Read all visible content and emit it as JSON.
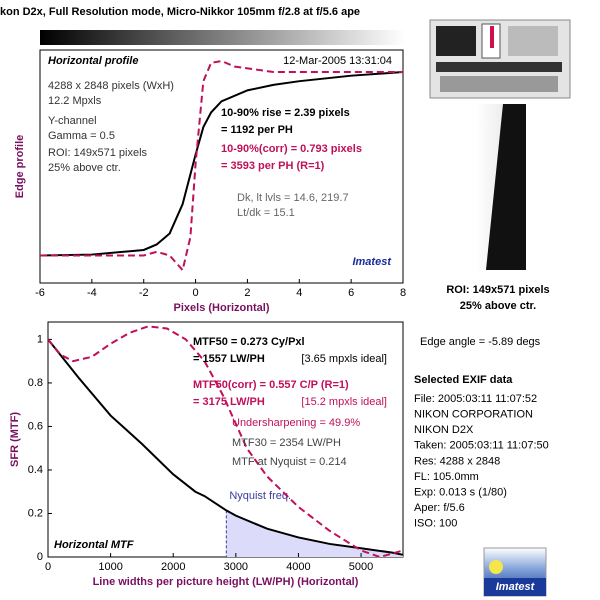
{
  "title": "kon D2x, Full Resolution mode, Micro-Nikkor 105mm f/2.8 at f/5.6 ape",
  "chart_data": [
    {
      "type": "line",
      "title": "Horizontal profile",
      "subtitle": "12-Mar-2005 13:31:04",
      "xlabel": "Pixels (Horizontal)",
      "ylabel": "Edge profile",
      "xlim": [
        -6,
        8
      ],
      "xticks": [
        -6,
        -4,
        -2,
        0,
        2,
        4,
        6,
        8
      ],
      "ylim": [
        -0.15,
        1.12
      ],
      "series": [
        {
          "color": "#000000",
          "dashed": false,
          "x": [
            -6,
            -4,
            -2,
            -1.5,
            -1,
            -0.5,
            0,
            0.3,
            0.6,
            1,
            2,
            3,
            4,
            6,
            8
          ],
          "values": [
            0,
            0.005,
            0.03,
            0.06,
            0.12,
            0.28,
            0.55,
            0.7,
            0.78,
            0.84,
            0.9,
            0.93,
            0.95,
            0.98,
            1.0
          ]
        },
        {
          "color": "#c0105a",
          "dashed": true,
          "x": [
            -6,
            -2,
            -1.5,
            -1,
            -0.5,
            -0.2,
            0,
            0.3,
            0.6,
            1,
            1.5,
            2,
            3,
            4,
            6,
            8
          ],
          "values": [
            0,
            0,
            0.02,
            0,
            -0.08,
            0.1,
            0.5,
            0.95,
            1.05,
            1.06,
            1.03,
            1.02,
            1.0,
            1.0,
            1.0,
            1.0
          ]
        }
      ],
      "annotations": [
        {
          "text": "4288 x 2848 pixels (WxH)",
          "color": "#333333"
        },
        {
          "text": "12.2 Mpxls",
          "color": "#333333"
        },
        {
          "text": "Y-channel",
          "color": "#333333"
        },
        {
          "text": "Gamma = 0.5",
          "color": "#333333"
        },
        {
          "text": "ROI: 149x571 pixels",
          "color": "#333333"
        },
        {
          "text": "25% above ctr.",
          "color": "#333333"
        },
        {
          "text": "10-90% rise = 2.39 pixels",
          "color": "#000000"
        },
        {
          "text": "= 1192 per PH",
          "color": "#000000"
        },
        {
          "text": "10-90%(corr) = 0.793 pixels",
          "color": "#c0105a"
        },
        {
          "text": "= 3593 per PH  (R=1)",
          "color": "#c0105a"
        },
        {
          "text": "Dk, lt lvls = 14.6, 219.7",
          "color": "#666666"
        },
        {
          "text": "Lt/dk = 15.1",
          "color": "#666666"
        },
        {
          "text": "Imatest",
          "color": "#1a2a9a"
        }
      ]
    },
    {
      "type": "line",
      "title": "Horizontal MTF",
      "xlabel": "Line widths per picture height (LW/PH) (Horizontal)",
      "ylabel": "SFR (MTF)",
      "xlim": [
        0,
        5670
      ],
      "xticks": [
        0,
        1000,
        2000,
        3000,
        4000,
        5000
      ],
      "ylim": [
        0,
        1.08
      ],
      "yticks": [
        0,
        0.2,
        0.4,
        0.6,
        0.8,
        1
      ],
      "nyquist": {
        "value": 2848,
        "label": "Nyquist freq.",
        "color": "#3a3aa0",
        "fill": "#dcdcfa"
      },
      "series": [
        {
          "color": "#000000",
          "dashed": false,
          "x": [
            0,
            500,
            1000,
            1500,
            2000,
            2354,
            2500,
            2848,
            3000,
            3500,
            4000,
            4500,
            5000,
            5500,
            5670
          ],
          "values": [
            1,
            0.82,
            0.65,
            0.52,
            0.38,
            0.3,
            0.28,
            0.214,
            0.19,
            0.13,
            0.09,
            0.06,
            0.04,
            0.02,
            0.01
          ]
        },
        {
          "color": "#c0105a",
          "dashed": true,
          "x": [
            0,
            200,
            400,
            700,
            1000,
            1300,
            1600,
            1900,
            2200,
            2500,
            2800,
            3175,
            3500,
            4000,
            4500,
            5000,
            5300,
            5670
          ],
          "values": [
            1,
            0.93,
            0.9,
            0.92,
            0.98,
            1.03,
            1.06,
            1.05,
            1.0,
            0.9,
            0.74,
            0.5,
            0.37,
            0.23,
            0.12,
            0.03,
            0,
            0.03
          ]
        }
      ],
      "annotations": [
        {
          "text": "MTF50 = 0.273 Cy/Pxl",
          "color": "#000000"
        },
        {
          "text": "= 1557 LW/PH",
          "color": "#000000"
        },
        {
          "text": "[3.65 mpxls ideal]",
          "color": "#000000"
        },
        {
          "text": "MTF50(corr) = 0.557 C/P  (R=1)",
          "color": "#c0105a"
        },
        {
          "text": "= 3175 LW/PH",
          "color": "#c0105a"
        },
        {
          "text": "[15.2 mpxls ideal]",
          "color": "#c0105a"
        },
        {
          "text": "Undersharpening = 49.9%",
          "color": "#c0105a"
        },
        {
          "text": "MTF30 = 2354 LW/PH",
          "color": "#444444"
        },
        {
          "text": "MTF at Nyquist = 0.214",
          "color": "#444444"
        }
      ]
    }
  ],
  "side": {
    "roi_caption": [
      "ROI: 149x571 pixels",
      "25% above ctr."
    ],
    "edge_angle": "Edge angle = -5.89 degs",
    "exif_title": "Selected EXIF data",
    "exif": [
      "File:  2005:03:11 11:07:52",
      "NIKON CORPORATION",
      "NIKON D2X",
      "Taken: 2005:03:11 11:07:50",
      "Res:    4288 x 2848",
      "FL:   105.0mm",
      "Exp:   0.013 s  (1/80)",
      "Aper:   f/5.6",
      "ISO:    100"
    ],
    "logo": "Imatest"
  }
}
